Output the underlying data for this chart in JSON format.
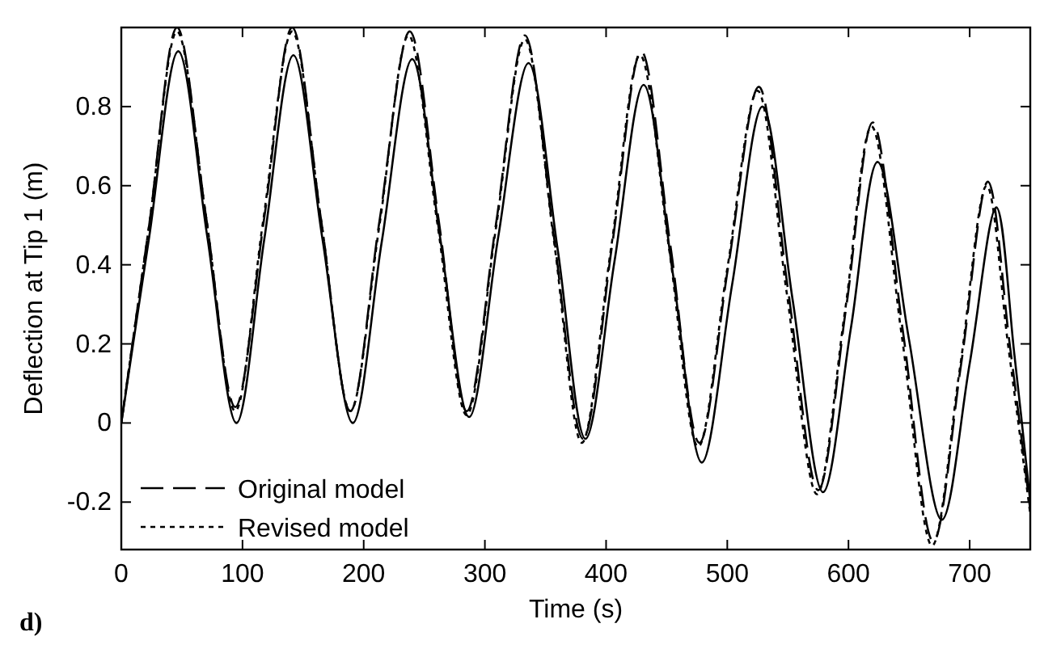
{
  "chart_data": {
    "type": "line",
    "xlabel": "Time (s)",
    "ylabel": "Deflection at Tip 1 (m)",
    "xlim": [
      0,
      750
    ],
    "ylim": [
      -0.32,
      1.0
    ],
    "xticks": [
      0,
      100,
      200,
      300,
      400,
      500,
      600,
      700
    ],
    "yticks": [
      -0.2,
      0,
      0.2,
      0.4,
      0.6,
      0.8
    ],
    "grid": false,
    "legend": "bottom left",
    "annotations": [
      "d)"
    ],
    "series": [
      {
        "color": "#000000",
        "line_style": "solid",
        "x": [
          0,
          23,
          47,
          71,
          95,
          118,
          142,
          166,
          191,
          215,
          240,
          263,
          287,
          311,
          336,
          360,
          383,
          407,
          431,
          455,
          479,
          504,
          529,
          554,
          579,
          602,
          624,
          650,
          677,
          700,
          722,
          737,
          750
        ],
        "values": [
          0,
          0.47,
          0.94,
          0.47,
          0.0,
          0.465,
          0.93,
          0.465,
          0.0,
          0.46,
          0.92,
          0.47,
          0.015,
          0.47,
          0.91,
          0.44,
          -0.04,
          0.41,
          0.855,
          0.38,
          -0.1,
          0.35,
          0.8,
          0.31,
          -0.175,
          0.24,
          0.66,
          0.21,
          -0.245,
          0.15,
          0.545,
          0.17,
          -0.2
        ]
      },
      {
        "name": "Original model",
        "color": "#000000",
        "line_style": "dashed",
        "x": [
          0,
          23,
          46,
          70,
          94,
          118,
          141,
          165,
          189,
          213,
          238,
          262,
          285,
          309,
          333,
          357,
          381,
          405,
          429,
          453,
          477,
          501,
          526,
          550,
          575,
          598,
          620,
          645,
          670,
          693,
          715,
          733,
          750
        ],
        "values": [
          0,
          0.5,
          1.0,
          0.52,
          0.04,
          0.52,
          1.0,
          0.51,
          0.03,
          0.51,
          0.99,
          0.51,
          0.03,
          0.5,
          0.98,
          0.47,
          -0.04,
          0.45,
          0.94,
          0.45,
          -0.05,
          0.4,
          0.85,
          0.34,
          -0.17,
          0.29,
          0.76,
          0.23,
          -0.3,
          0.15,
          0.61,
          0.2,
          -0.22
        ]
      },
      {
        "name": "Revised model",
        "color": "#000000",
        "line_style": "dotted",
        "x": [
          0,
          23,
          46,
          70,
          94,
          117,
          141,
          165,
          189,
          213,
          237,
          261,
          285,
          309,
          333,
          357,
          380,
          404,
          428,
          452,
          476,
          500,
          525,
          549,
          574,
          597,
          619,
          644,
          669,
          692,
          714,
          732,
          750
        ],
        "values": [
          0,
          0.5,
          0.99,
          0.52,
          0.03,
          0.51,
          0.99,
          0.51,
          0.03,
          0.5,
          0.98,
          0.5,
          0.02,
          0.49,
          0.97,
          0.46,
          -0.05,
          0.44,
          0.93,
          0.44,
          -0.06,
          0.39,
          0.84,
          0.33,
          -0.18,
          0.28,
          0.75,
          0.22,
          -0.31,
          0.14,
          0.6,
          0.19,
          -0.23
        ]
      }
    ]
  }
}
